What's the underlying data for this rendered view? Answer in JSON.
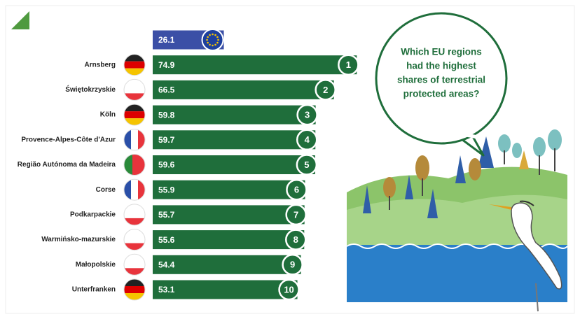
{
  "chart_data": {
    "type": "bar",
    "orientation": "horizontal",
    "title_lines": [
      "Which EU regions",
      "had the highest",
      "shares of terrestrial",
      "protected areas?"
    ],
    "categories": [
      null,
      "Arnsberg",
      "Świętokrzyskie",
      "Köln",
      "Provence-Alpes-Côte d'Azur",
      "Região Autónoma da Madeira",
      "Corse",
      "Podkarpackie",
      "Warmińsko-mazurskie",
      "Małopolskie",
      "Unterfranken"
    ],
    "values": [
      26.1,
      74.9,
      66.5,
      59.8,
      59.7,
      59.6,
      55.9,
      55.7,
      55.6,
      54.4,
      53.1
    ],
    "ranks": [
      null,
      1,
      2,
      3,
      4,
      5,
      6,
      7,
      8,
      9,
      10
    ],
    "colors": [
      "#3b4fa6",
      "#1f6e3b",
      "#1f6e3b",
      "#1f6e3b",
      "#1f6e3b",
      "#1f6e3b",
      "#1f6e3b",
      "#1f6e3b",
      "#1f6e3b",
      "#1f6e3b",
      "#1f6e3b"
    ]
  }
}
